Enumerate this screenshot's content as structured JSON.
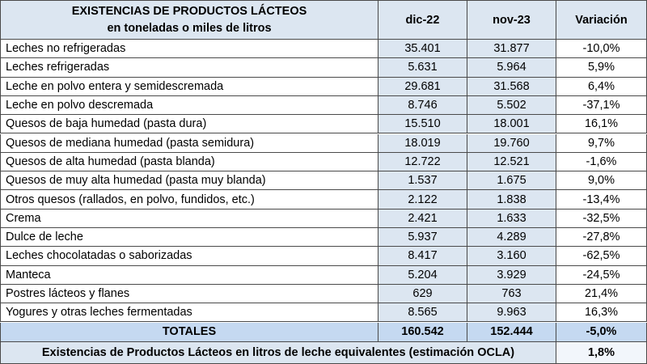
{
  "table": {
    "header": {
      "title": [
        "EXISTENCIAS DE PRODUCTOS LÁCTEOS",
        "en toneladas o miles de litros"
      ],
      "columns": [
        "dic-22",
        "nov-23",
        "Variación"
      ]
    },
    "rows": [
      [
        "Leches no refrigeradas",
        "35.401",
        "31.877",
        "-10,0%"
      ],
      [
        "Leches refrigeradas",
        "5.631",
        "5.964",
        "5,9%"
      ],
      [
        "Leche en polvo entera y semidescremada",
        "29.681",
        "31.568",
        "6,4%"
      ],
      [
        "Leche en polvo descremada",
        "8.746",
        "5.502",
        "-37,1%"
      ],
      [
        "Quesos de baja humedad (pasta dura)",
        "15.510",
        "18.001",
        "16,1%"
      ],
      [
        "Quesos de mediana humedad (pasta semidura)",
        "18.019",
        "19.760",
        "9,7%"
      ],
      [
        "Quesos de alta humedad (pasta blanda)",
        "12.722",
        "12.521",
        "-1,6%"
      ],
      [
        "Quesos de muy alta humedad (pasta muy blanda)",
        "1.537",
        "1.675",
        "9,0%"
      ],
      [
        "Otros quesos (rallados, en polvo, fundidos, etc.)",
        "2.122",
        "1.838",
        "-13,4%"
      ],
      [
        "Crema",
        "2.421",
        "1.633",
        "-32,5%"
      ],
      [
        "Dulce de leche",
        "5.937",
        "4.289",
        "-27,8%"
      ],
      [
        "Leches chocolatadas o saborizadas",
        "8.417",
        "3.160",
        "-62,5%"
      ],
      [
        "Manteca",
        "5.204",
        "3.929",
        "-24,5%"
      ],
      [
        "Postres lácteos y flanes",
        "629",
        "763",
        "21,4%"
      ],
      [
        "Yogures y otras leches fermentadas",
        "8.565",
        "9.963",
        "16,3%"
      ]
    ],
    "totals": [
      "TOTALES",
      "160.542",
      "152.444",
      "-5,0%"
    ],
    "footer": [
      "Existencias de Productos Lácteos en litros de leche equivalentes (estimación OCLA)",
      "1,8%"
    ]
  }
}
